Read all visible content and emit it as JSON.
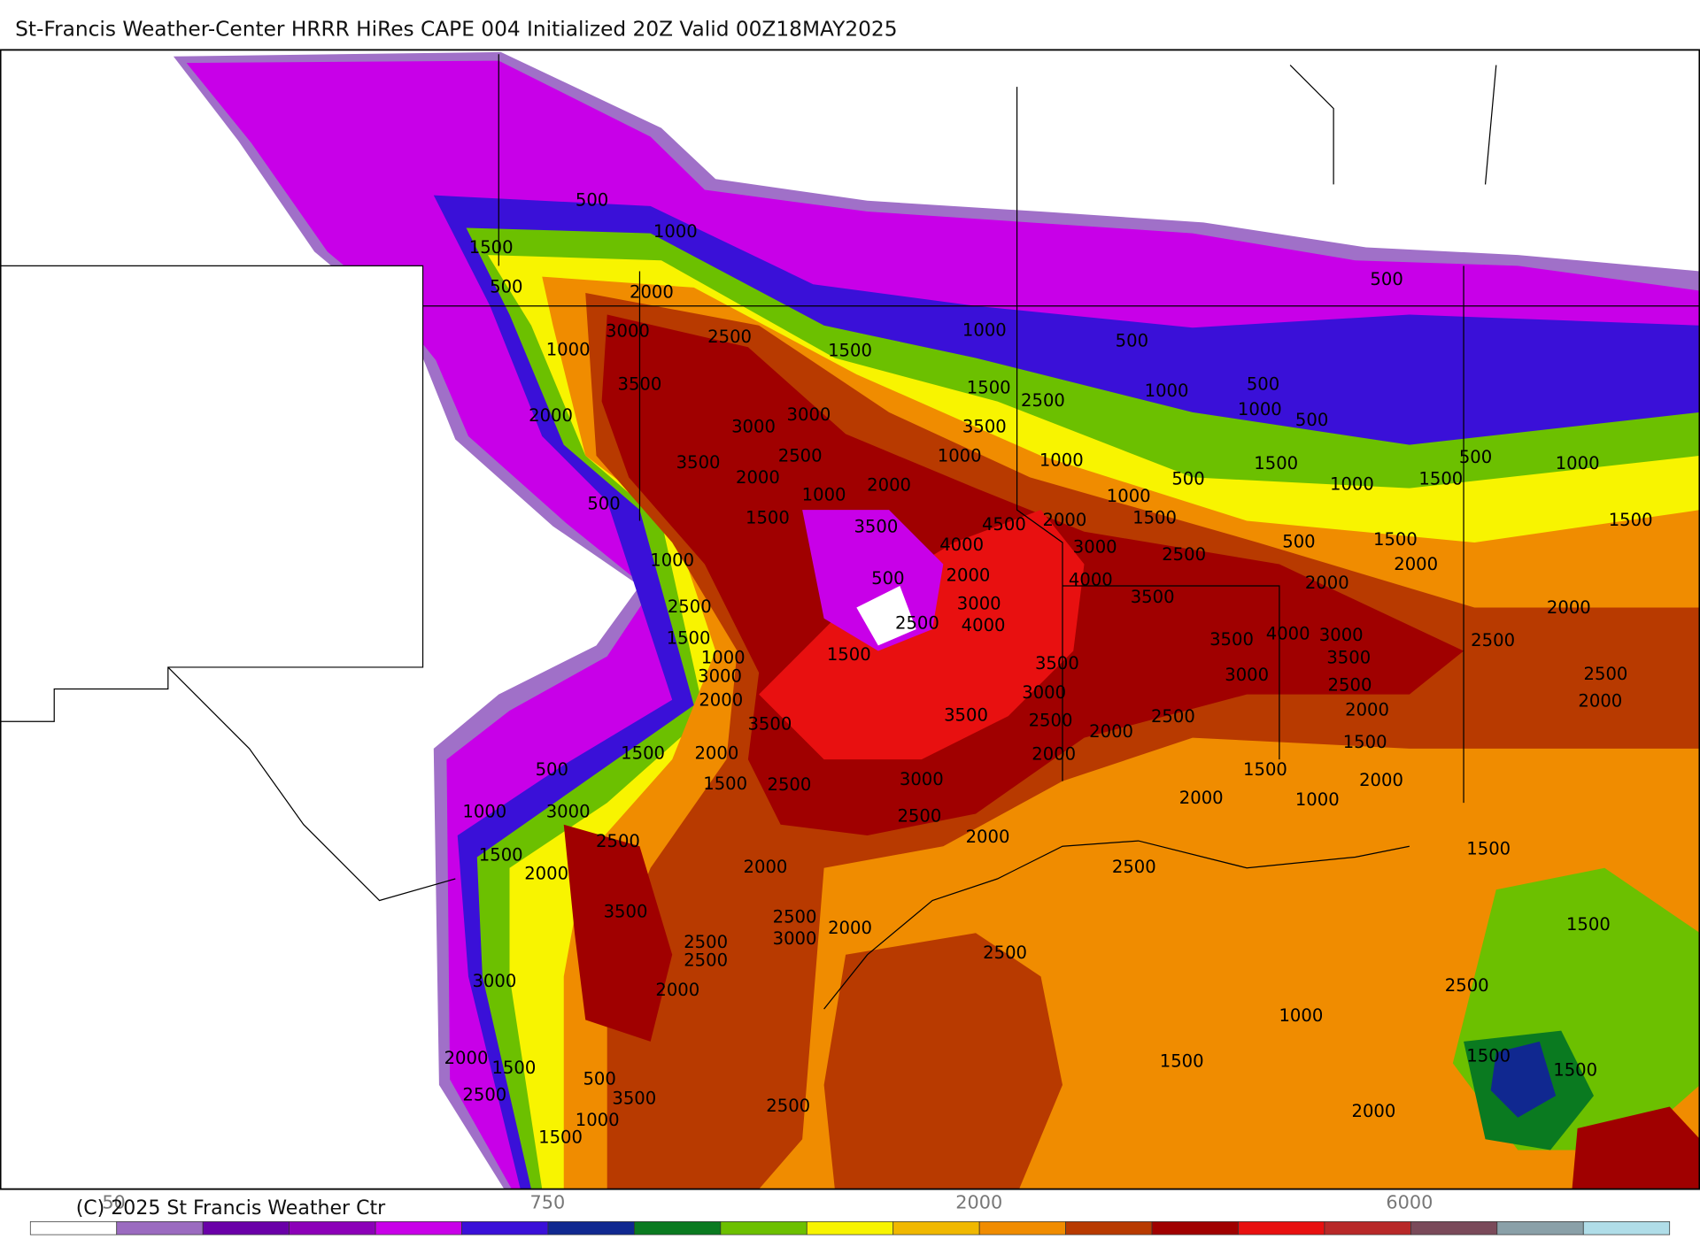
{
  "title": "St-Francis Weather-Center HRRR HiRes CAPE  004 Initialized  20Z Valid 00Z18MAY2025",
  "copyright": "(C) 2025 St Francis Weather Ctr",
  "colorbar": {
    "colors": [
      "#ffffff",
      "#9b6bc0",
      "#6a00a8",
      "#8c00b8",
      "#c800e8",
      "#3a10d8",
      "#102890",
      "#0a7a20",
      "#6cc000",
      "#f8f400",
      "#f0b800",
      "#f08c00",
      "#b83a00",
      "#a00000",
      "#e81010",
      "#b82828",
      "#7a4a5a",
      "#8aa0a8",
      "#b0dde8"
    ],
    "labels": [
      50,
      750,
      2000,
      6000
    ]
  },
  "contour_labels": [
    500,
    1000,
    1500,
    500,
    2000,
    3000,
    2500,
    1000,
    1500,
    1000,
    500,
    3500,
    2000,
    3000,
    3000,
    1500,
    2500,
    3500,
    3500,
    2500,
    1000,
    1000,
    2000,
    2000,
    1000,
    500,
    1500,
    3500,
    4500,
    2000,
    1000,
    500,
    1000,
    500,
    1500,
    500,
    1000,
    1500,
    1000,
    1500,
    500,
    1000,
    500,
    1500,
    4000,
    3000,
    2500,
    500,
    1500,
    2000,
    2000,
    1000,
    500,
    2000,
    4000,
    3500,
    3000,
    2500,
    2000,
    2500,
    4000,
    1500,
    1500,
    1000,
    3500,
    4000,
    3000,
    2500,
    3500,
    3500,
    3000,
    3000,
    2500,
    2500,
    3000,
    2000,
    2000,
    2000,
    3500,
    2500,
    2500,
    2000,
    3500,
    1500,
    2000,
    2000,
    1500,
    500,
    1500,
    2500,
    3000,
    1500,
    2000,
    1000,
    3000,
    2500,
    2000,
    1000,
    2500,
    2000,
    1500,
    1500,
    2000,
    2000,
    2500,
    3500,
    2500,
    2000,
    3000,
    2500,
    2500,
    2500,
    1500,
    3000,
    2000,
    2500,
    1000,
    2000,
    1500,
    1500,
    1500,
    1500,
    500,
    2500,
    3500,
    2500,
    2000,
    1000,
    1500
  ]
}
